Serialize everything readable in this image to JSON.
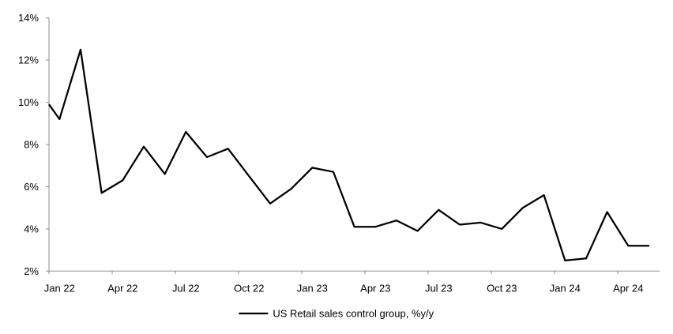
{
  "chart_data": {
    "type": "line",
    "x_categories": [
      "Jan 22",
      "Feb 22",
      "Mar 22",
      "Apr 22",
      "May 22",
      "Jun 22",
      "Jul 22",
      "Aug 22",
      "Sep 22",
      "Oct 22",
      "Nov 22",
      "Dec 22",
      "Jan 23",
      "Feb 23",
      "Mar 23",
      "Apr 23",
      "May 23",
      "Jun 23",
      "Jul 23",
      "Aug 23",
      "Sep 23",
      "Oct 23",
      "Nov 23",
      "Dec 23",
      "Jan 24",
      "Feb 24",
      "Mar 24",
      "Apr 24",
      "May 24"
    ],
    "x_tick_labels": [
      "Jan 22",
      "Apr 22",
      "Jul 22",
      "Oct 22",
      "Jan 23",
      "Apr 23",
      "Jul 23",
      "Oct 23",
      "Jan 24",
      "Apr 24"
    ],
    "x_label_every": 3,
    "series": [
      {
        "name": "US Retail sales control group, %y/y",
        "values": [
          9.2,
          12.5,
          5.7,
          6.3,
          7.9,
          6.6,
          8.6,
          7.4,
          7.8,
          6.5,
          5.2,
          5.9,
          6.9,
          6.7,
          4.1,
          4.1,
          4.4,
          3.9,
          4.9,
          4.2,
          4.3,
          4.0,
          5.0,
          5.6,
          2.5,
          2.6,
          4.8,
          3.2,
          3.2
        ],
        "color": "#000000",
        "line_width": 2.25
      }
    ],
    "left_edge_start_value": 9.9,
    "ylim": [
      2,
      14
    ],
    "y_tick_step": 2,
    "y_tick_suffix": "%",
    "y_tick_labels": [
      "2%",
      "4%",
      "6%",
      "8%",
      "10%",
      "12%",
      "14%"
    ],
    "grid": false,
    "legend_position": "bottom-center",
    "axis_color": "#8f8f8f",
    "text_color": "#000000",
    "background": "#ffffff"
  }
}
